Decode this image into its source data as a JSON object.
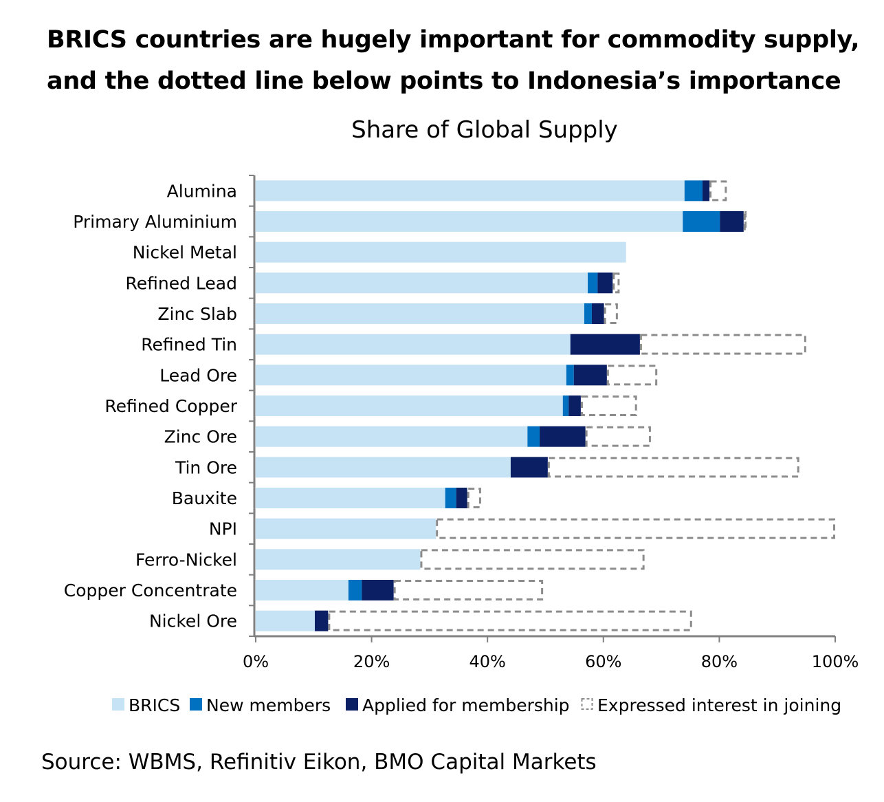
{
  "headline": {
    "line1": "BRICS countries are hugely important for commodity supply,",
    "line2": "and the dotted line below points to Indonesia’s importance"
  },
  "source": "Source: WBMS, Refinitiv Eikon, BMO Capital Markets",
  "chart_data": {
    "type": "bar",
    "orientation": "horizontal",
    "stacked": true,
    "title": "Share of Global Supply",
    "xlabel": "",
    "ylabel": "",
    "xlim": [
      0,
      100
    ],
    "x_ticks": [
      "0%",
      "20%",
      "40%",
      "60%",
      "80%",
      "100%"
    ],
    "grid": false,
    "legend_position": "bottom",
    "categories": [
      "Alumina",
      "Primary Aluminium",
      "Nickel Metal",
      "Refined Lead",
      "Zinc Slab",
      "Refined Tin",
      "Lead Ore",
      "Refined Copper",
      "Zinc Ore",
      "Tin Ore",
      "Bauxite",
      "NPI",
      "Ferro-Nickel",
      "Copper Concentrate",
      "Nickel Ore"
    ],
    "units": "% of global supply (segment increments)",
    "series": [
      {
        "name": "BRICS",
        "color": "#c5e3f4",
        "style": "solid",
        "values": [
          74.0,
          73.7,
          63.9,
          57.3,
          56.7,
          54.3,
          53.6,
          53.0,
          46.9,
          44.0,
          32.7,
          31.1,
          28.4,
          16.0,
          10.2
        ]
      },
      {
        "name": "New members",
        "color": "#0070c0",
        "style": "solid",
        "values": [
          3.1,
          6.4,
          0,
          1.7,
          1.3,
          0,
          1.3,
          1.0,
          2.1,
          0,
          1.9,
          0,
          0,
          2.3,
          0
        ]
      },
      {
        "name": "Applied for membership",
        "color": "#0b1f65",
        "style": "solid",
        "values": [
          1.2,
          4.1,
          0,
          2.6,
          2.1,
          12.0,
          5.7,
          2.1,
          7.9,
          6.4,
          1.9,
          0,
          0,
          5.5,
          2.3
        ]
      },
      {
        "name": "Expressed interest in joining",
        "color": "#8c8c8c",
        "style": "dashed",
        "values": [
          3.0,
          0.5,
          0,
          1.2,
          2.4,
          28.7,
          8.7,
          9.7,
          11.3,
          43.4,
          2.4,
          68.9,
          38.7,
          25.8,
          62.8
        ]
      }
    ]
  }
}
